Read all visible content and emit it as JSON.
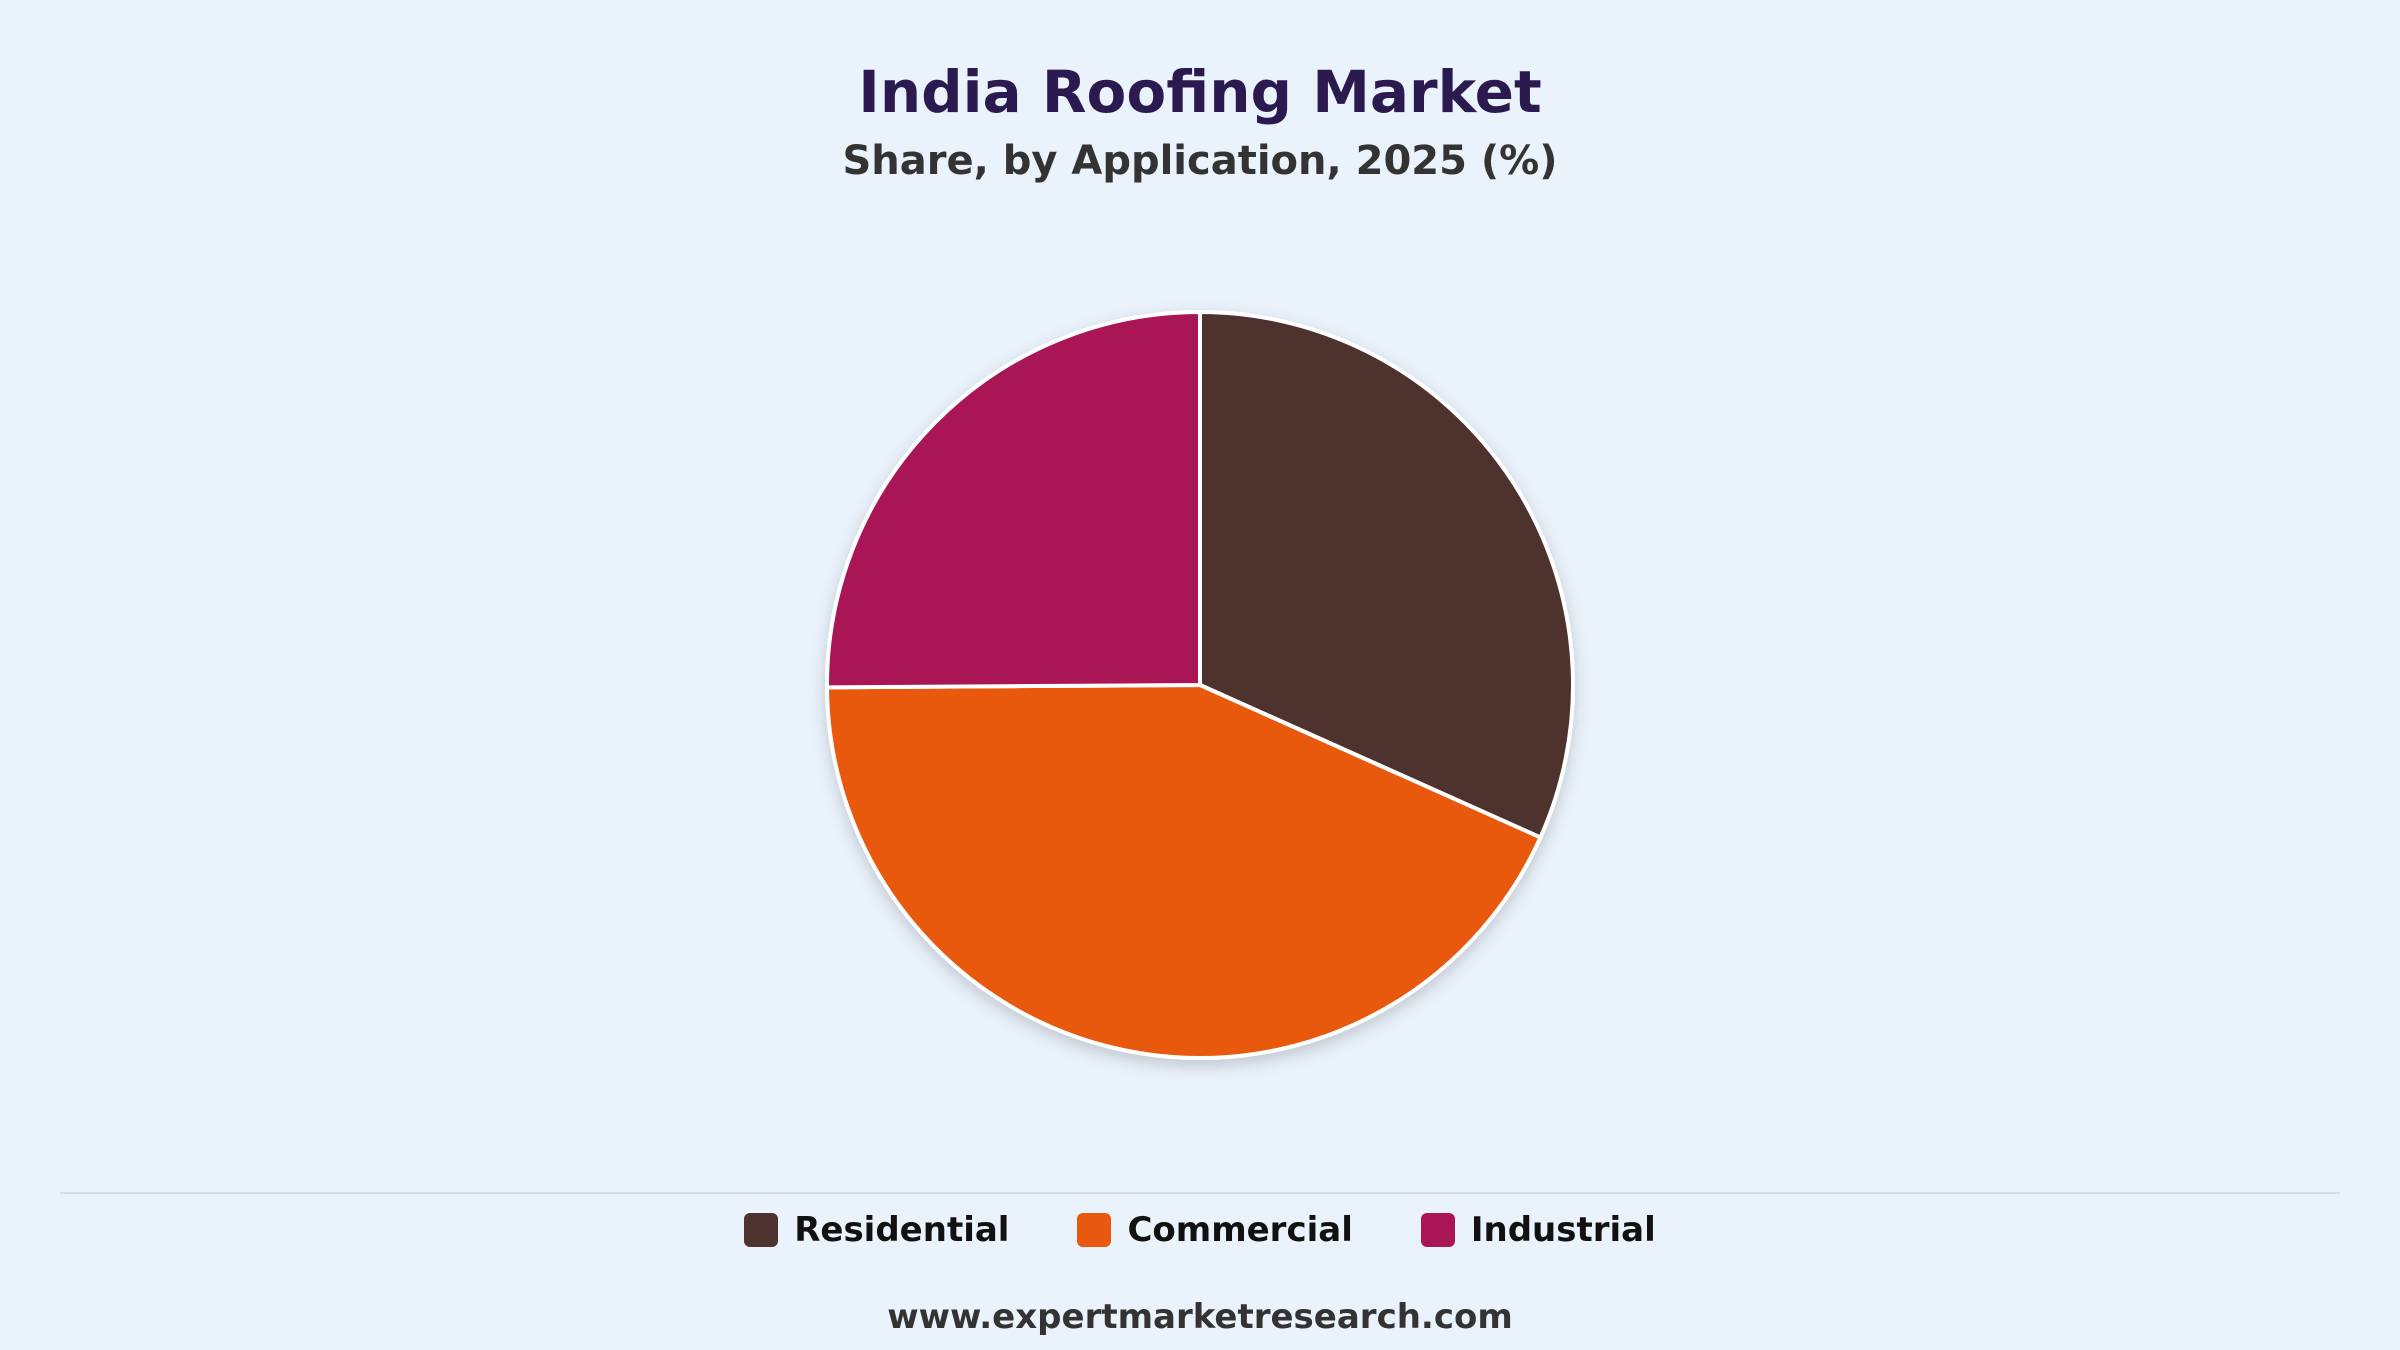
{
  "header": {
    "title": "India Roofing Market",
    "subtitle": "Share, by Application, 2025 (%)"
  },
  "chart_data": {
    "type": "pie",
    "title": "India Roofing Market",
    "subtitle": "Share, by Application, 2025 (%)",
    "categories": [
      "Residential",
      "Commercial",
      "Industrial"
    ],
    "values": [
      31.7,
      43.2,
      25.1
    ],
    "colors": [
      "#4d322d",
      "#e8580f",
      "#aa1655"
    ],
    "start_angle_deg": 0,
    "direction": "clockwise",
    "legend": "bottom-center"
  },
  "legend": {
    "items": [
      {
        "label": "Residential",
        "color": "#4d322d"
      },
      {
        "label": "Commercial",
        "color": "#e8580f"
      },
      {
        "label": "Industrial",
        "color": "#aa1655"
      }
    ]
  },
  "footer": {
    "source": "www.expertmarketresearch.com"
  }
}
